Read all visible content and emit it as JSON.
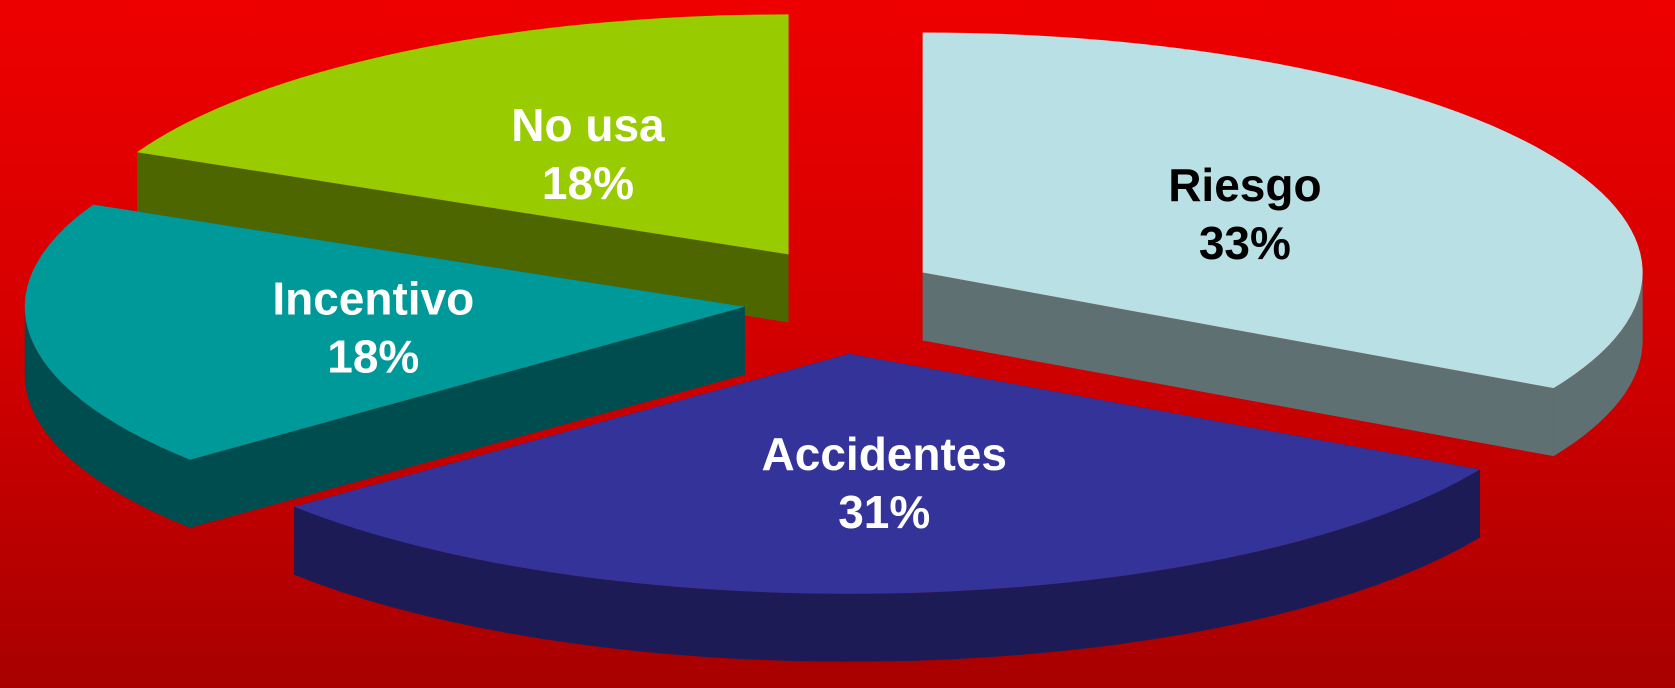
{
  "chart_data": {
    "type": "pie",
    "style": "3d-exploded",
    "slices": [
      {
        "name": "Riesgo",
        "value": 33,
        "pct_label": "33%",
        "top_color": "#b9e0e4",
        "side_color": "#5f7072",
        "label_color": "#000000"
      },
      {
        "name": "Accidentes",
        "value": 31,
        "pct_label": "31%",
        "top_color": "#333399",
        "side_color": "#1d1b55",
        "label_color": "#ffffff"
      },
      {
        "name": "Incentivo",
        "value": 18,
        "pct_label": "18%",
        "top_color": "#009999",
        "side_color": "#004d4f",
        "label_color": "#ffffff"
      },
      {
        "name": "No usa",
        "value": 18,
        "pct_label": "18%",
        "top_color": "#99cc00",
        "side_color": "#4d6600",
        "label_color": "#ffffff"
      }
    ]
  },
  "colors": {
    "background_top": "#ee0000",
    "background_bottom": "#a80000"
  }
}
